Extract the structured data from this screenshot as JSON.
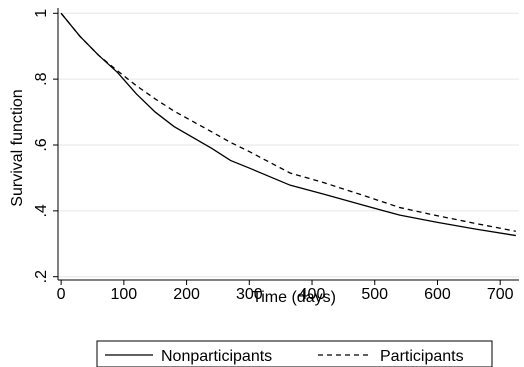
{
  "chart_data": {
    "type": "line",
    "title": "",
    "xlabel": "Time (days)",
    "ylabel": "Survival function",
    "xlim": [
      -5,
      730
    ],
    "ylim": [
      0.19,
      1.01
    ],
    "x_ticks": [
      0,
      100,
      200,
      300,
      400,
      500,
      600,
      700
    ],
    "x_tick_labels": [
      "0",
      "100",
      "200",
      "300",
      "400",
      "500",
      "600",
      "700"
    ],
    "y_ticks": [
      0.2,
      0.4,
      0.6,
      0.8,
      1
    ],
    "y_tick_labels": [
      ".2",
      ".4",
      ".6",
      ".8",
      "1"
    ],
    "grid": true,
    "legend_position": "bottom",
    "series": [
      {
        "name": "Nonparticipants",
        "style": "solid",
        "color": "#000000",
        "x": [
          0,
          30,
          60,
          90,
          120,
          150,
          180,
          240,
          270,
          300,
          365,
          420,
          480,
          540,
          600,
          660,
          725
        ],
        "y": [
          1.0,
          0.93,
          0.872,
          0.82,
          0.755,
          0.7,
          0.656,
          0.59,
          0.553,
          0.53,
          0.478,
          0.45,
          0.418,
          0.387,
          0.365,
          0.345,
          0.325
        ]
      },
      {
        "name": "Participants",
        "style": "dashed",
        "color": "#000000",
        "x": [
          0,
          30,
          60,
          90,
          120,
          150,
          180,
          240,
          270,
          300,
          365,
          420,
          480,
          540,
          600,
          660,
          725
        ],
        "y": [
          1.0,
          0.93,
          0.872,
          0.825,
          0.78,
          0.74,
          0.703,
          0.64,
          0.608,
          0.58,
          0.515,
          0.485,
          0.448,
          0.41,
          0.385,
          0.362,
          0.338
        ]
      }
    ]
  }
}
